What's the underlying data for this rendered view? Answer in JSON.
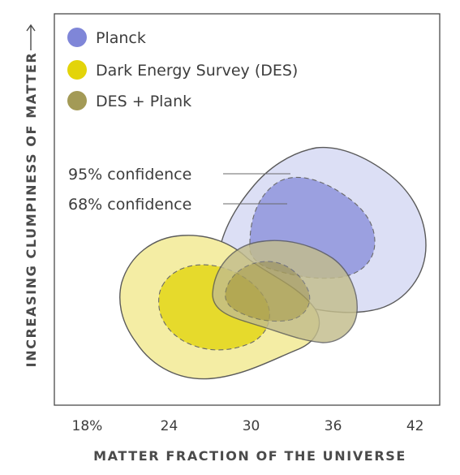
{
  "chart_data": {
    "type": "contour",
    "xlabel": "MATTER FRACTION OF THE UNIVERSE",
    "ylabel": "INCREASING CLUMPINESS OF MATTER",
    "ylabel_arrow": "→",
    "x_ticks": [
      "18%",
      "24",
      "30",
      "36",
      "42"
    ],
    "x_tick_values": [
      18,
      24,
      30,
      36,
      42
    ],
    "xlim": [
      15.6,
      43.8
    ],
    "grid": false,
    "legend_placement": "top-left",
    "legend": [
      {
        "label": "Planck",
        "color": "#7f86d8"
      },
      {
        "label": "Dark Energy Survey (DES)",
        "color": "#e3d40a"
      },
      {
        "label": "DES + Plank",
        "color": "#a39a56"
      }
    ],
    "annotations": [
      {
        "text": "95% confidence",
        "points_to": "Planck 95% contour"
      },
      {
        "text": "68% confidence",
        "points_to": "Planck 68% contour"
      }
    ],
    "series": [
      {
        "name": "Planck",
        "levels": [
          {
            "level": "95%",
            "fill": "#dcdff5"
          },
          {
            "level": "68%",
            "fill": "#9ba0e0"
          }
        ]
      },
      {
        "name": "Dark Energy Survey (DES)",
        "levels": [
          {
            "level": "95%",
            "fill": "#f4eda4"
          },
          {
            "level": "68%",
            "fill": "#e6da2c"
          }
        ]
      },
      {
        "name": "DES + Plank",
        "levels": [
          {
            "level": "95%",
            "fill": "#c3bd8c"
          },
          {
            "level": "68%",
            "fill": "#a89e5c"
          }
        ]
      }
    ]
  }
}
